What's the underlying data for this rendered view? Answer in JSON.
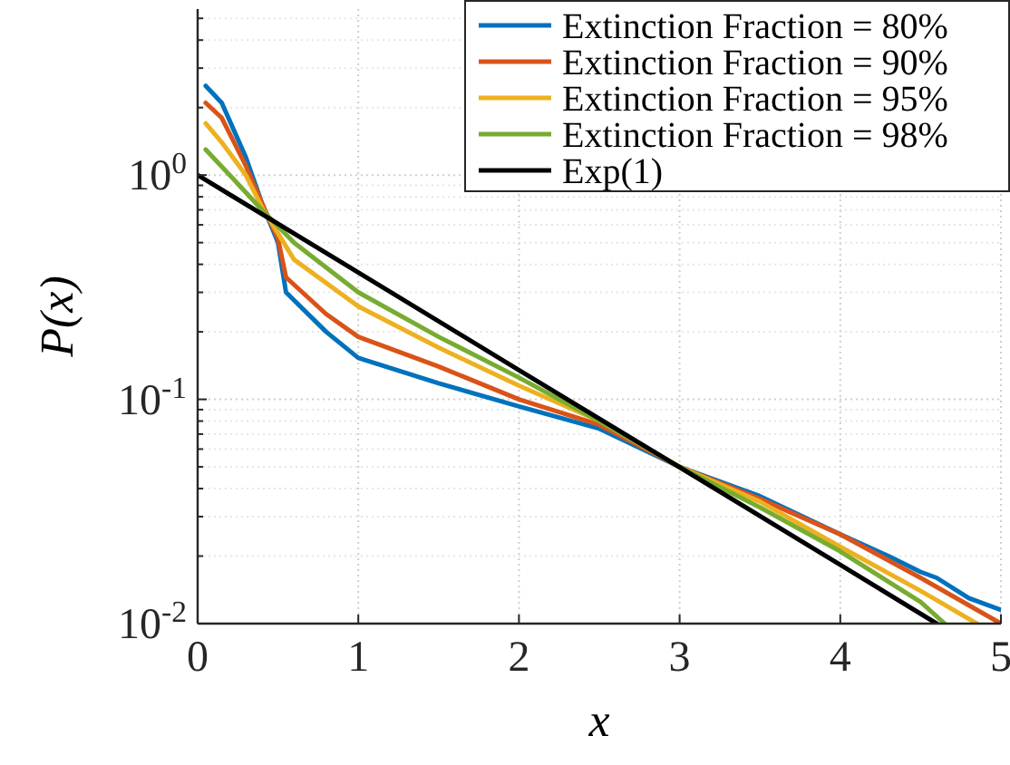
{
  "chart_data": {
    "type": "line",
    "xlabel": "x",
    "ylabel": "P(x)",
    "log": "y",
    "grid": true,
    "legend": "top right",
    "line_style": "solid",
    "marker": "none",
    "xlim": [
      0,
      5
    ],
    "ylim": [
      0.01,
      5.5
    ],
    "xticks": [
      0,
      1,
      2,
      3,
      4,
      5
    ],
    "yticks": [
      {
        "value": 0.01,
        "label": "10$^{-2}$"
      },
      {
        "value": 0.1,
        "label": "10$^{-1}$"
      },
      {
        "value": 1,
        "label": "10$^{0}$"
      }
    ],
    "series": [
      {
        "name": "Extinction Fraction = 80%",
        "color": "#0072bd",
        "x": [
          0.05,
          0.15,
          0.3,
          0.4,
          0.5,
          0.55,
          0.8,
          1,
          1.5,
          2,
          2.5,
          3,
          3.5,
          4,
          4.3,
          4.5,
          4.6,
          4.8,
          5
        ],
        "values": [
          2.5,
          2.1,
          1.2,
          0.75,
          0.5,
          0.3,
          0.2,
          0.153,
          0.118,
          0.093,
          0.074,
          0.05,
          0.037,
          0.025,
          0.02,
          0.017,
          0.016,
          0.013,
          0.0115
        ]
      },
      {
        "name": "Extinction Fraction = 90%",
        "color": "#d95319",
        "x": [
          0.05,
          0.15,
          0.3,
          0.4,
          0.5,
          0.55,
          0.8,
          1,
          1.5,
          2,
          2.5,
          3,
          3.5,
          4,
          4.5,
          5
        ],
        "values": [
          2.1,
          1.8,
          1.1,
          0.75,
          0.52,
          0.35,
          0.24,
          0.19,
          0.14,
          0.1,
          0.077,
          0.05,
          0.036,
          0.025,
          0.016,
          0.01
        ]
      },
      {
        "name": "Extinction Fraction = 95%",
        "color": "#edb120",
        "x": [
          0.05,
          0.15,
          0.3,
          0.4,
          0.5,
          0.6,
          1,
          1.5,
          2,
          2.5,
          3,
          3.5,
          4,
          4.5,
          4.85
        ],
        "values": [
          1.7,
          1.4,
          1.0,
          0.72,
          0.55,
          0.42,
          0.26,
          0.17,
          0.115,
          0.08,
          0.05,
          0.035,
          0.022,
          0.014,
          0.01
        ]
      },
      {
        "name": "Extinction Fraction = 98%",
        "color": "#77ac30",
        "x": [
          0.05,
          0.2,
          0.4,
          0.6,
          1,
          1.5,
          2,
          2.5,
          3,
          3.5,
          4,
          4.5,
          4.65
        ],
        "values": [
          1.3,
          1.0,
          0.7,
          0.5,
          0.3,
          0.19,
          0.125,
          0.08,
          0.05,
          0.033,
          0.021,
          0.0125,
          0.01
        ]
      },
      {
        "name": "Exp(1)",
        "color": "#000000",
        "x": [
          0,
          1,
          2,
          3,
          4,
          4.6
        ],
        "values": [
          1,
          0.368,
          0.135,
          0.0498,
          0.0183,
          0.01
        ]
      }
    ]
  }
}
